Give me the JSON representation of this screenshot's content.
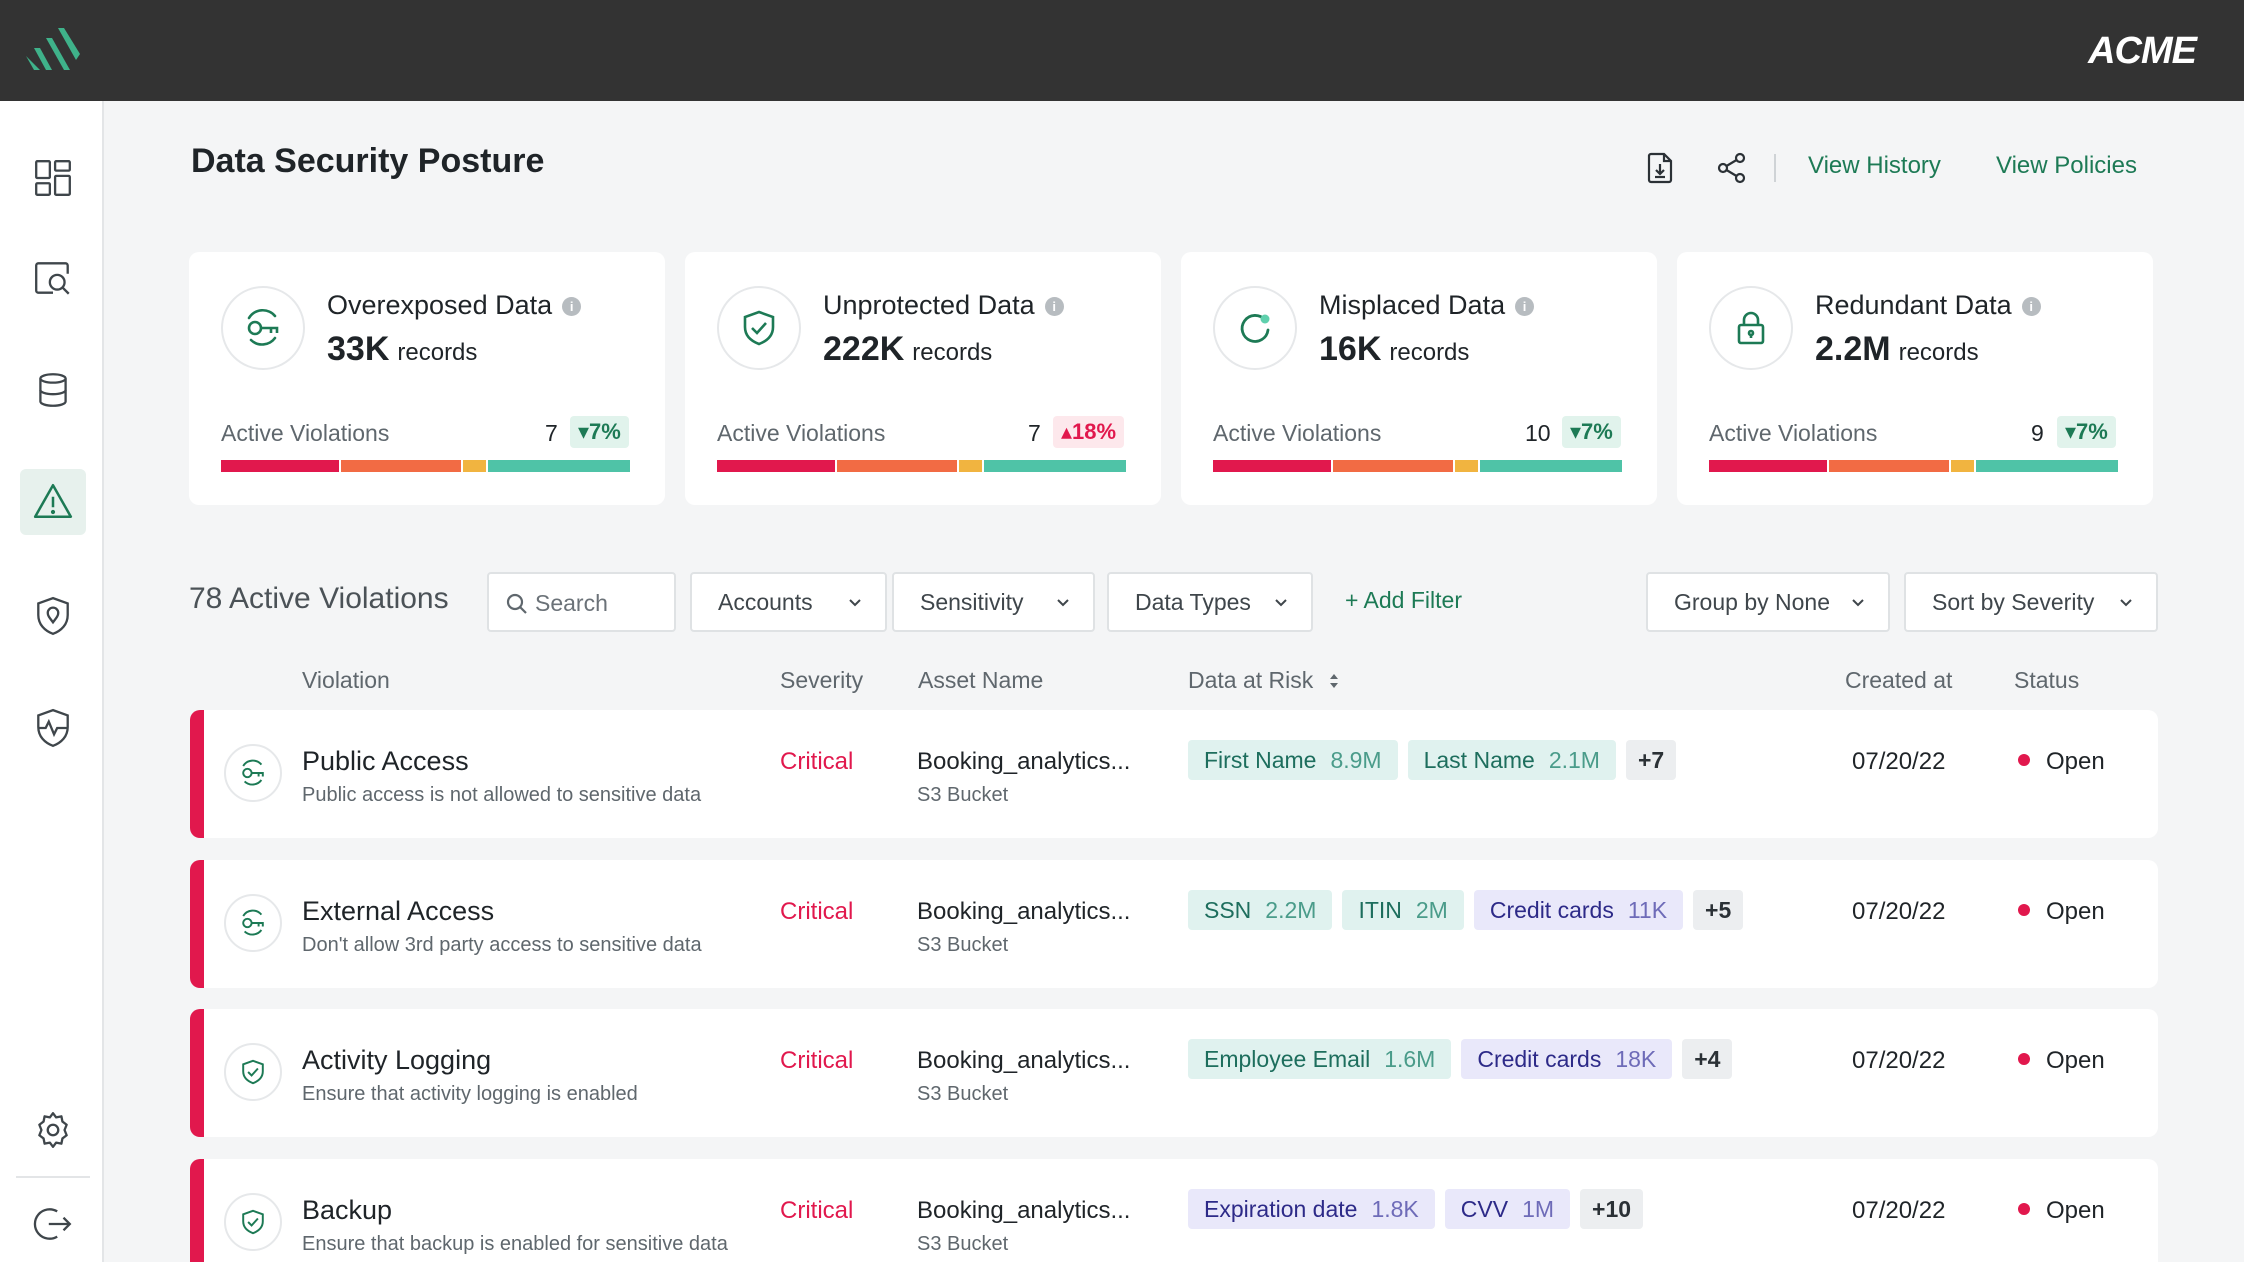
{
  "brand": "ACME",
  "colors": {
    "accent": "#1d7a55",
    "critical": "#e1184d",
    "high": "#f26b44",
    "medium": "#f1b440",
    "low": "#4fc3a7"
  },
  "sidebar": {
    "items": [
      {
        "icon": "dashboard-icon",
        "active": false
      },
      {
        "icon": "data-discovery-icon",
        "active": false
      },
      {
        "icon": "database-icon",
        "active": false
      },
      {
        "icon": "warning-icon",
        "active": true
      },
      {
        "icon": "shield-location-icon",
        "active": false
      },
      {
        "icon": "activity-shield-icon",
        "active": false
      }
    ],
    "bottom": [
      {
        "icon": "settings-icon"
      },
      {
        "icon": "logout-icon"
      }
    ]
  },
  "header": {
    "title": "Data Security Posture",
    "view_history": "View History",
    "view_policies": "View Policies"
  },
  "summary_cards": [
    {
      "title": "Overexposed Data",
      "count": "33K",
      "unit": "records",
      "viol_label": "Active Violations",
      "viol_count": "7",
      "trend": "7%",
      "trend_dir": "down",
      "icon": "key-icon"
    },
    {
      "title": "Unprotected Data",
      "count": "222K",
      "unit": "records",
      "viol_label": "Active Violations",
      "viol_count": "7",
      "trend": "18%",
      "trend_dir": "up",
      "icon": "shield-check-icon"
    },
    {
      "title": "Misplaced Data",
      "count": "16K",
      "unit": "records",
      "viol_label": "Active Violations",
      "viol_count": "10",
      "trend": "7%",
      "trend_dir": "down",
      "icon": "refresh-icon"
    },
    {
      "title": "Redundant Data",
      "count": "2.2M",
      "unit": "records",
      "viol_label": "Active Violations",
      "viol_count": "9",
      "trend": "7%",
      "trend_dir": "down",
      "icon": "lock-icon"
    }
  ],
  "violations": {
    "title": "78 Active Violations",
    "search_placeholder": "Search",
    "filters": {
      "accounts": "Accounts",
      "sensitivity": "Sensitivity",
      "data_types": "Data Types",
      "add_filter": "+ Add Filter",
      "group_by": "Group by None",
      "sort_by": "Sort by Severity"
    },
    "columns": {
      "violation": "Violation",
      "severity": "Severity",
      "asset": "Asset Name",
      "data_at_risk": "Data at Risk",
      "created": "Created at",
      "status": "Status"
    },
    "rows": [
      {
        "title": "Public Access",
        "desc": "Public access is not allowed to sensitive data",
        "severity": "Critical",
        "asset": "Booking_analytics...",
        "asset_type": "S3 Bucket",
        "icon": "key-icon",
        "tags": [
          {
            "label": "First Name",
            "value": "8.9M",
            "style": "teal"
          },
          {
            "label": "Last Name",
            "value": "2.1M",
            "style": "teal"
          }
        ],
        "more": "+7",
        "date": "07/20/22",
        "status": "Open"
      },
      {
        "title": "External Access",
        "desc": "Don't allow 3rd party access to sensitive data",
        "severity": "Critical",
        "asset": "Booking_analytics...",
        "asset_type": "S3 Bucket",
        "icon": "key-icon",
        "tags": [
          {
            "label": "SSN",
            "value": "2.2M",
            "style": "teal"
          },
          {
            "label": "ITIN",
            "value": "2M",
            "style": "teal"
          },
          {
            "label": "Credit cards",
            "value": "11K",
            "style": "purple"
          }
        ],
        "more": "+5",
        "date": "07/20/22",
        "status": "Open"
      },
      {
        "title": "Activity Logging",
        "desc": "Ensure that activity logging is enabled",
        "severity": "Critical",
        "asset": "Booking_analytics...",
        "asset_type": "S3 Bucket",
        "icon": "shield-check-icon",
        "tags": [
          {
            "label": "Employee Email",
            "value": "1.6M",
            "style": "teal"
          },
          {
            "label": "Credit cards",
            "value": "18K",
            "style": "purple"
          }
        ],
        "more": "+4",
        "date": "07/20/22",
        "status": "Open"
      },
      {
        "title": "Backup",
        "desc": "Ensure that backup is enabled for sensitive data",
        "severity": "Critical",
        "asset": "Booking_analytics...",
        "asset_type": "S3 Bucket",
        "icon": "shield-check-icon",
        "tags": [
          {
            "label": "Expiration date",
            "value": "1.8K",
            "style": "purple"
          },
          {
            "label": "CVV",
            "value": "1M",
            "style": "purple"
          }
        ],
        "more": "+10",
        "date": "07/20/22",
        "status": "Open"
      }
    ]
  }
}
